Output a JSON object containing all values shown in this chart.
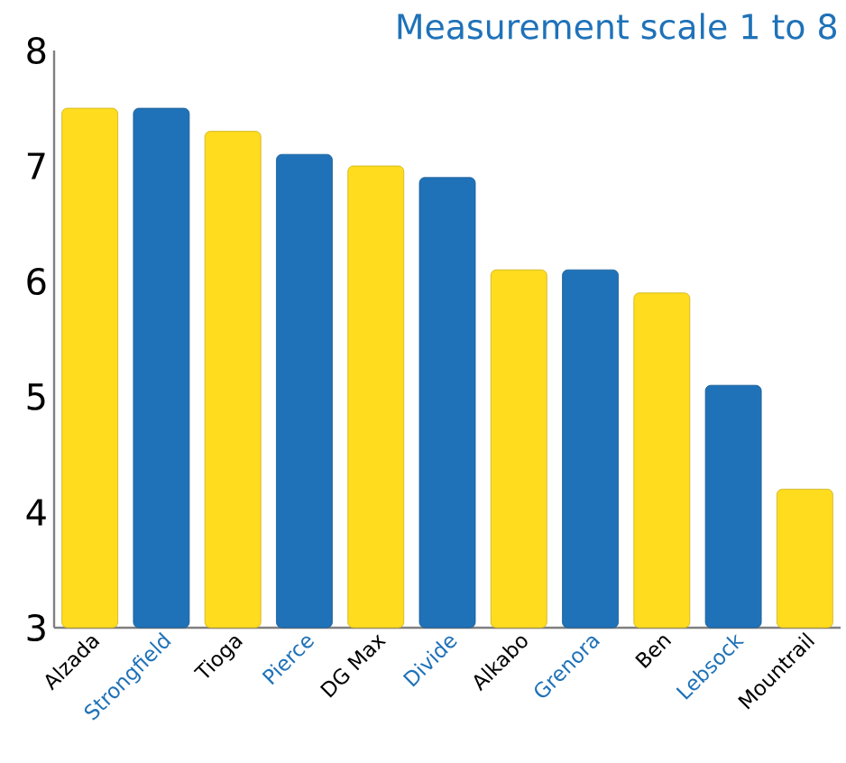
{
  "chart_data": {
    "type": "bar",
    "title": "Measurement scale 1 to 8",
    "categories": [
      "Alzada",
      "Strongfield",
      "Tioga",
      "Pierce",
      "DG Max",
      "Divide",
      "Alkabo",
      "Grenora",
      "Ben",
      "Lebsock",
      "Mountrail"
    ],
    "values": [
      7.5,
      7.5,
      7.3,
      7.1,
      7.0,
      6.9,
      6.1,
      6.1,
      5.9,
      5.1,
      4.2
    ],
    "colors": [
      "#ffdc1e",
      "#1f72b8",
      "#ffdc1e",
      "#1f72b8",
      "#ffdc1e",
      "#1f72b8",
      "#ffdc1e",
      "#1f72b8",
      "#ffdc1e",
      "#1f72b8",
      "#ffdc1e"
    ],
    "ylim": [
      3,
      8
    ],
    "yticks": [
      3,
      4,
      5,
      6,
      7,
      8
    ],
    "grid": false
  }
}
